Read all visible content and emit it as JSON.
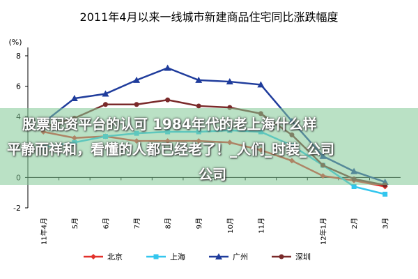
{
  "chart_data": {
    "type": "line",
    "title": "2011年4月以来一线城市新建商品住宅同比涨跌幅度",
    "y_label": "(%)",
    "categories": [
      "11年4月",
      "5月",
      "6月",
      "7月",
      "8月",
      "9月",
      "10月",
      "11月",
      null,
      "12年1月",
      "2月",
      "3月"
    ],
    "series": [
      {
        "name": "北京",
        "color": "#e2312b",
        "marker": "diamond",
        "values": [
          3.0,
          2.6,
          2.7,
          2.4,
          2.4,
          2.4,
          2.3,
          1.8,
          1.1,
          0.1,
          -0.2,
          -0.6
        ]
      },
      {
        "name": "上海",
        "color": "#33c6ee",
        "marker": "square",
        "values": [
          2.0,
          2.3,
          2.7,
          2.9,
          3.0,
          3.0,
          3.1,
          3.0,
          2.1,
          0.8,
          -0.6,
          -1.1
        ]
      },
      {
        "name": "广州",
        "color": "#1f3c9c",
        "marker": "triangle",
        "values": [
          3.6,
          5.2,
          5.5,
          6.4,
          7.2,
          6.4,
          6.3,
          6.1,
          3.7,
          1.4,
          0.4,
          -0.3
        ]
      },
      {
        "name": "深圳",
        "color": "#7a2a2a",
        "marker": "circle",
        "values": [
          3.3,
          3.9,
          4.8,
          4.8,
          5.1,
          4.7,
          4.6,
          4.2,
          2.8,
          0.8,
          -0.1,
          -0.5
        ]
      }
    ],
    "ylim": [
      -2,
      8
    ],
    "yticks": [
      -2,
      0,
      2,
      4,
      6,
      8
    ],
    "legend": "bottom"
  },
  "overlay": {
    "lines": [
      "股票配资平台的认可 1984年代的老上海什么样",
      "平静而祥和，看懂的人都已经老了！_人们_时装_公司",
      "公司"
    ]
  }
}
